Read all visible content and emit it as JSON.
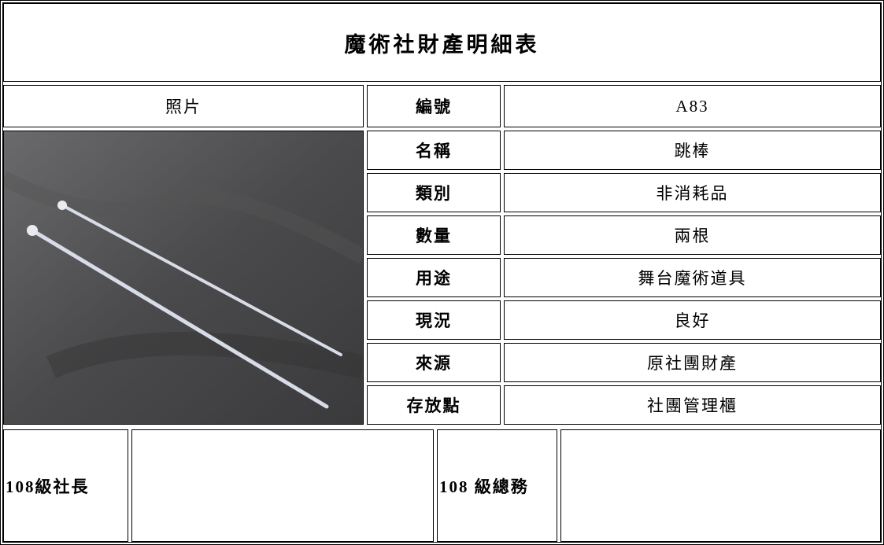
{
  "title": "魔術社財產明細表",
  "photo_header": "照片",
  "fields": [
    {
      "label": "編號",
      "value": "A83"
    },
    {
      "label": "名稱",
      "value": "跳棒"
    },
    {
      "label": "類別",
      "value": "非消耗品"
    },
    {
      "label": "數量",
      "value": "兩根"
    },
    {
      "label": "用途",
      "value": "舞台魔術道具"
    },
    {
      "label": "現況",
      "value": "良好"
    },
    {
      "label": "來源",
      "value": "原社團財產"
    },
    {
      "label": "存放點",
      "value": "社團管理櫃"
    }
  ],
  "signatures": [
    {
      "label": "108級社長"
    },
    {
      "label": "108 級總務"
    }
  ]
}
